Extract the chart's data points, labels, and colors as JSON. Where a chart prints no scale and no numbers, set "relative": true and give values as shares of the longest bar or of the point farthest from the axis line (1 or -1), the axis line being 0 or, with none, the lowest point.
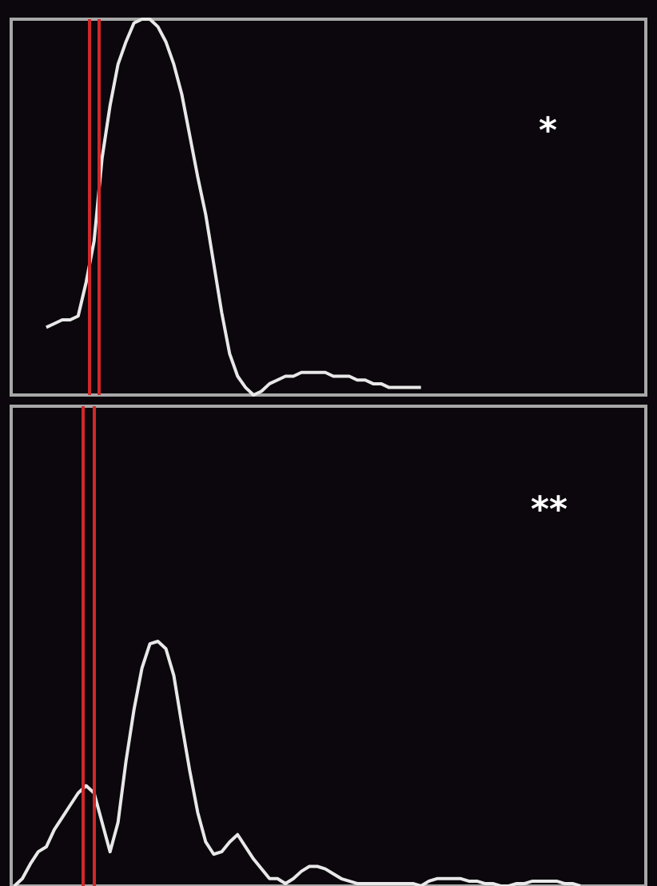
{
  "chart_data": [
    {
      "type": "line",
      "relative": true,
      "categories": [
        null,
        null,
        null,
        null,
        null,
        null,
        null,
        null,
        null,
        null,
        null,
        null,
        null,
        null,
        null,
        null,
        null,
        null,
        null,
        null,
        null,
        null,
        null,
        null,
        null,
        null,
        null,
        null,
        null,
        null,
        null,
        null,
        null,
        null,
        null,
        null,
        null,
        null,
        null,
        null,
        null,
        null,
        null,
        null,
        null,
        null,
        null,
        null,
        null,
        null,
        null,
        null,
        null,
        null,
        null,
        null,
        null,
        null,
        null,
        null,
        null,
        null,
        null,
        null,
        null,
        null,
        null,
        null,
        null,
        null,
        null,
        null,
        null,
        null,
        null,
        null,
        null,
        null,
        null,
        null
      ],
      "series": [
        {
          "color": "#e8e8e8",
          "values": [
            null,
            null,
            null,
            null,
            0.18,
            0.19,
            0.2,
            0.2,
            0.21,
            0.3,
            0.41,
            0.63,
            0.77,
            0.88,
            0.94,
            0.99,
            1,
            1,
            0.98,
            0.94,
            0.88,
            0.8,
            0.69,
            0.58,
            0.48,
            0.35,
            0.22,
            0.11,
            0.05,
            0.02,
            0,
            0.01,
            0.03,
            0.04,
            0.05,
            0.05,
            0.06,
            0.06,
            0.06,
            0.06,
            0.05,
            0.05,
            0.05,
            0.04,
            0.04,
            0.03,
            0.03,
            0.02,
            0.02,
            0.02,
            0.02,
            0.02,
            null,
            null,
            null,
            null,
            null,
            null,
            null,
            null,
            null,
            null,
            null,
            null,
            null,
            null,
            null,
            null,
            null,
            null,
            null,
            null,
            null,
            null,
            null,
            null,
            null,
            null,
            null,
            null
          ]
        }
      ],
      "annotations": [
        "*"
      ]
    },
    {
      "type": "line",
      "relative": true,
      "categories": [
        null,
        null,
        null,
        null,
        null,
        null,
        null,
        null,
        null,
        null,
        null,
        null,
        null,
        null,
        null,
        null,
        null,
        null,
        null,
        null,
        null,
        null,
        null,
        null,
        null,
        null,
        null,
        null,
        null,
        null,
        null,
        null,
        null,
        null,
        null,
        null,
        null,
        null,
        null,
        null,
        null,
        null,
        null,
        null,
        null,
        null,
        null,
        null,
        null,
        null,
        null,
        null,
        null,
        null,
        null,
        null,
        null,
        null,
        null,
        null,
        null,
        null,
        null,
        null,
        null,
        null,
        null,
        null,
        null,
        null,
        null,
        null,
        null,
        null,
        null,
        null,
        null,
        null,
        null,
        null
      ],
      "series": [
        {
          "color": "#e8e8e8",
          "values": [
            0,
            0.03,
            0.09,
            0.14,
            0.16,
            0.23,
            0.28,
            0.33,
            0.38,
            0.41,
            0.38,
            0.26,
            0.14,
            0.26,
            0.51,
            0.72,
            0.89,
            0.99,
            1,
            0.97,
            0.86,
            0.66,
            0.47,
            0.3,
            0.18,
            0.13,
            0.14,
            0.18,
            0.21,
            0.16,
            0.11,
            0.07,
            0.03,
            0.03,
            0.01,
            0.03,
            0.06,
            0.08,
            0.08,
            0.07,
            0.05,
            0.03,
            0.02,
            0.01,
            0.01,
            0.01,
            0.01,
            0.01,
            0.01,
            0.01,
            0.01,
            0,
            0.02,
            0.03,
            0.03,
            0.03,
            0.03,
            0.02,
            0.02,
            0.01,
            0.01,
            0,
            0,
            0.01,
            0.01,
            0.02,
            0.02,
            0.02,
            0.02,
            0.01,
            0.01,
            0,
            null,
            null,
            null,
            null,
            null,
            null,
            null,
            null
          ]
        }
      ],
      "annotations": [
        "**"
      ]
    }
  ]
}
